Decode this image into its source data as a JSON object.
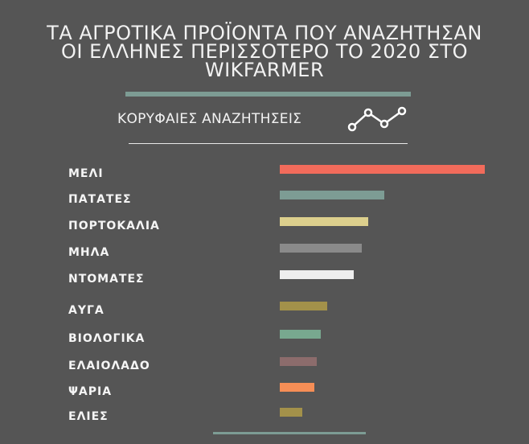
{
  "header": {
    "title": "ΤΑ ΑΓΡΟΤΙΚΑ ΠΡΟΪΟΝΤΑ ΠΟΥ ΑΝΑΖΗΤΗΣΑΝ\nΟΙ ΕΛΛΗΝΕΣ ΠΕΡΙΣΣΟΤΕΡΟ ΤΟ 2020 ΣΤΟ\nWIKFARMER",
    "subtitle": "ΚΟΡΥΦΑΙΕΣ ΑΝΑΖΗΤΗΣΕΙΣ",
    "icon": "trend-line-icon"
  },
  "colors": {
    "background": "#555555",
    "accent_rule": "#7d9c94"
  },
  "chart_data": {
    "type": "bar",
    "orientation": "horizontal",
    "categories": [
      "ΜΕΛΙ",
      "ΠΑΤΑΤΕΣ",
      "ΠΟΡΤΟΚΑΛΙΑ",
      "ΜΗΛΑ",
      "ΝΤΟΜΑΤΕΣ",
      "ΑΥΓΑ",
      "ΒΙΟΛΟΓΙΚΑ",
      "ΕΛΑΙΟΛΑΔΟ",
      "ΨΑΡΙΑ",
      "ΕΛΙΕΣ"
    ],
    "values": [
      100,
      51,
      43,
      40,
      36,
      23,
      20,
      18,
      17,
      11
    ],
    "colors": [
      "#f26b5b",
      "#7d9c94",
      "#dccf8d",
      "#8a8a8a",
      "#eeeeee",
      "#a3914a",
      "#78a88f",
      "#8c6c6c",
      "#f68e56",
      "#a3914a"
    ],
    "xlim": [
      0,
      100
    ],
    "grid": false,
    "legend": "none"
  }
}
